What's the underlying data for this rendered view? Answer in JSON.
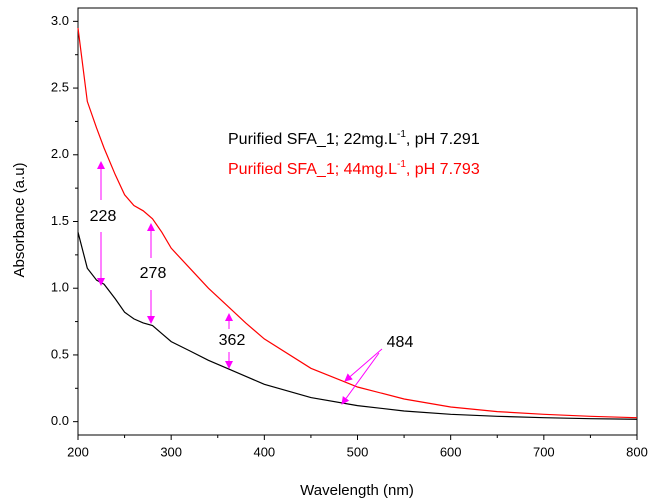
{
  "chart_data": {
    "type": "line",
    "x_label": "Wavelength (nm)",
    "y_label": "Absorbance (a.u)",
    "x": [
      200,
      210,
      220,
      228,
      240,
      250,
      260,
      270,
      280,
      290,
      300,
      320,
      340,
      360,
      380,
      400,
      450,
      500,
      550,
      600,
      650,
      700,
      750,
      800
    ],
    "series": [
      {
        "name": [
          "Purified SFA_1; 22mg.L",
          "-1",
          ", pH 7.291"
        ],
        "color": "#000000",
        "values": [
          1.42,
          1.15,
          1.06,
          1.03,
          0.92,
          0.82,
          0.77,
          0.74,
          0.72,
          0.66,
          0.6,
          0.53,
          0.46,
          0.4,
          0.34,
          0.28,
          0.18,
          0.12,
          0.08,
          0.055,
          0.04,
          0.03,
          0.022,
          0.018
        ]
      },
      {
        "name": [
          "Purified SFA_1; 44mg.L",
          "-1",
          ", pH 7.793"
        ],
        "color": "#ff0000",
        "values": [
          2.95,
          2.4,
          2.2,
          2.05,
          1.85,
          1.7,
          1.62,
          1.58,
          1.52,
          1.42,
          1.3,
          1.15,
          1.0,
          0.87,
          0.74,
          0.62,
          0.4,
          0.26,
          0.17,
          0.11,
          0.075,
          0.055,
          0.04,
          0.03
        ]
      }
    ],
    "annotations": [
      "228",
      "278",
      "362",
      "484"
    ],
    "annotation_color": "#ff00ff",
    "xlim": [
      200,
      800
    ],
    "ylim": [
      -0.1,
      3.1
    ],
    "xticks": [
      200,
      300,
      400,
      500,
      600,
      700,
      800
    ],
    "yticks": [
      {
        "value": 0,
        "label": "0.0"
      },
      0.5,
      {
        "value": 1,
        "label": "1.0"
      },
      1.5,
      {
        "value": 2,
        "label": "2.0"
      },
      2.5,
      {
        "value": 3,
        "label": "3.0"
      }
    ],
    "grid": false
  }
}
